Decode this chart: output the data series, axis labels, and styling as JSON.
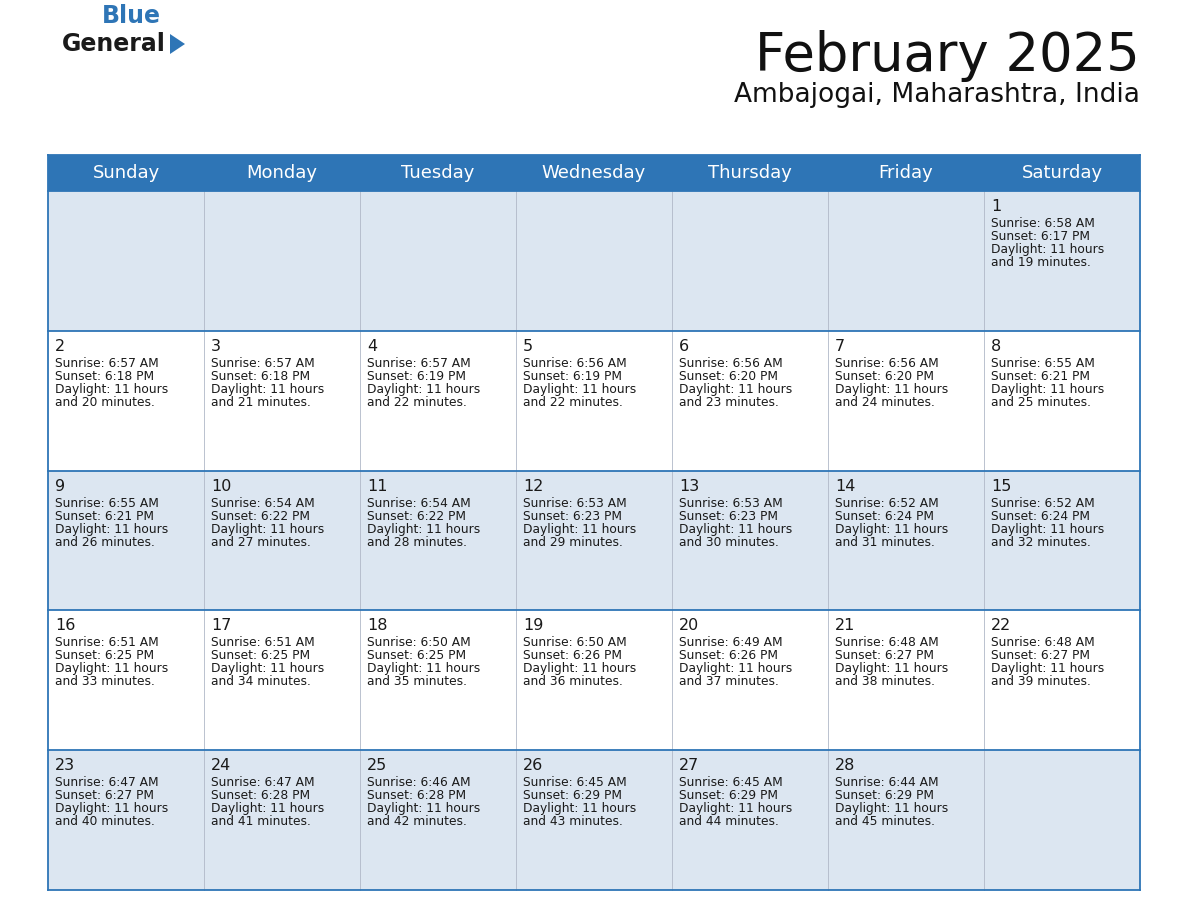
{
  "title": "February 2025",
  "subtitle": "Ambajogai, Maharashtra, India",
  "header_color": "#2e75b6",
  "header_text_color": "#ffffff",
  "days_of_week": [
    "Sunday",
    "Monday",
    "Tuesday",
    "Wednesday",
    "Thursday",
    "Friday",
    "Saturday"
  ],
  "bg_color": "#ffffff",
  "cell_bg_light": "#dce6f1",
  "cell_bg_white": "#ffffff",
  "grid_line_color": "#2e75b6",
  "day_number_color": "#1a1a1a",
  "cell_text_color": "#1a1a1a",
  "logo_general_color": "#1a1a1a",
  "logo_blue_color": "#2e75b6",
  "calendar_data": [
    [
      null,
      null,
      null,
      null,
      null,
      null,
      {
        "day": 1,
        "sunrise": "6:58 AM",
        "sunset": "6:17 PM",
        "daylight_hours": 11,
        "daylight_minutes": 19
      }
    ],
    [
      {
        "day": 2,
        "sunrise": "6:57 AM",
        "sunset": "6:18 PM",
        "daylight_hours": 11,
        "daylight_minutes": 20
      },
      {
        "day": 3,
        "sunrise": "6:57 AM",
        "sunset": "6:18 PM",
        "daylight_hours": 11,
        "daylight_minutes": 21
      },
      {
        "day": 4,
        "sunrise": "6:57 AM",
        "sunset": "6:19 PM",
        "daylight_hours": 11,
        "daylight_minutes": 22
      },
      {
        "day": 5,
        "sunrise": "6:56 AM",
        "sunset": "6:19 PM",
        "daylight_hours": 11,
        "daylight_minutes": 22
      },
      {
        "day": 6,
        "sunrise": "6:56 AM",
        "sunset": "6:20 PM",
        "daylight_hours": 11,
        "daylight_minutes": 23
      },
      {
        "day": 7,
        "sunrise": "6:56 AM",
        "sunset": "6:20 PM",
        "daylight_hours": 11,
        "daylight_minutes": 24
      },
      {
        "day": 8,
        "sunrise": "6:55 AM",
        "sunset": "6:21 PM",
        "daylight_hours": 11,
        "daylight_minutes": 25
      }
    ],
    [
      {
        "day": 9,
        "sunrise": "6:55 AM",
        "sunset": "6:21 PM",
        "daylight_hours": 11,
        "daylight_minutes": 26
      },
      {
        "day": 10,
        "sunrise": "6:54 AM",
        "sunset": "6:22 PM",
        "daylight_hours": 11,
        "daylight_minutes": 27
      },
      {
        "day": 11,
        "sunrise": "6:54 AM",
        "sunset": "6:22 PM",
        "daylight_hours": 11,
        "daylight_minutes": 28
      },
      {
        "day": 12,
        "sunrise": "6:53 AM",
        "sunset": "6:23 PM",
        "daylight_hours": 11,
        "daylight_minutes": 29
      },
      {
        "day": 13,
        "sunrise": "6:53 AM",
        "sunset": "6:23 PM",
        "daylight_hours": 11,
        "daylight_minutes": 30
      },
      {
        "day": 14,
        "sunrise": "6:52 AM",
        "sunset": "6:24 PM",
        "daylight_hours": 11,
        "daylight_minutes": 31
      },
      {
        "day": 15,
        "sunrise": "6:52 AM",
        "sunset": "6:24 PM",
        "daylight_hours": 11,
        "daylight_minutes": 32
      }
    ],
    [
      {
        "day": 16,
        "sunrise": "6:51 AM",
        "sunset": "6:25 PM",
        "daylight_hours": 11,
        "daylight_minutes": 33
      },
      {
        "day": 17,
        "sunrise": "6:51 AM",
        "sunset": "6:25 PM",
        "daylight_hours": 11,
        "daylight_minutes": 34
      },
      {
        "day": 18,
        "sunrise": "6:50 AM",
        "sunset": "6:25 PM",
        "daylight_hours": 11,
        "daylight_minutes": 35
      },
      {
        "day": 19,
        "sunrise": "6:50 AM",
        "sunset": "6:26 PM",
        "daylight_hours": 11,
        "daylight_minutes": 36
      },
      {
        "day": 20,
        "sunrise": "6:49 AM",
        "sunset": "6:26 PM",
        "daylight_hours": 11,
        "daylight_minutes": 37
      },
      {
        "day": 21,
        "sunrise": "6:48 AM",
        "sunset": "6:27 PM",
        "daylight_hours": 11,
        "daylight_minutes": 38
      },
      {
        "day": 22,
        "sunrise": "6:48 AM",
        "sunset": "6:27 PM",
        "daylight_hours": 11,
        "daylight_minutes": 39
      }
    ],
    [
      {
        "day": 23,
        "sunrise": "6:47 AM",
        "sunset": "6:27 PM",
        "daylight_hours": 11,
        "daylight_minutes": 40
      },
      {
        "day": 24,
        "sunrise": "6:47 AM",
        "sunset": "6:28 PM",
        "daylight_hours": 11,
        "daylight_minutes": 41
      },
      {
        "day": 25,
        "sunrise": "6:46 AM",
        "sunset": "6:28 PM",
        "daylight_hours": 11,
        "daylight_minutes": 42
      },
      {
        "day": 26,
        "sunrise": "6:45 AM",
        "sunset": "6:29 PM",
        "daylight_hours": 11,
        "daylight_minutes": 43
      },
      {
        "day": 27,
        "sunrise": "6:45 AM",
        "sunset": "6:29 PM",
        "daylight_hours": 11,
        "daylight_minutes": 44
      },
      {
        "day": 28,
        "sunrise": "6:44 AM",
        "sunset": "6:29 PM",
        "daylight_hours": 11,
        "daylight_minutes": 45
      },
      null
    ]
  ]
}
